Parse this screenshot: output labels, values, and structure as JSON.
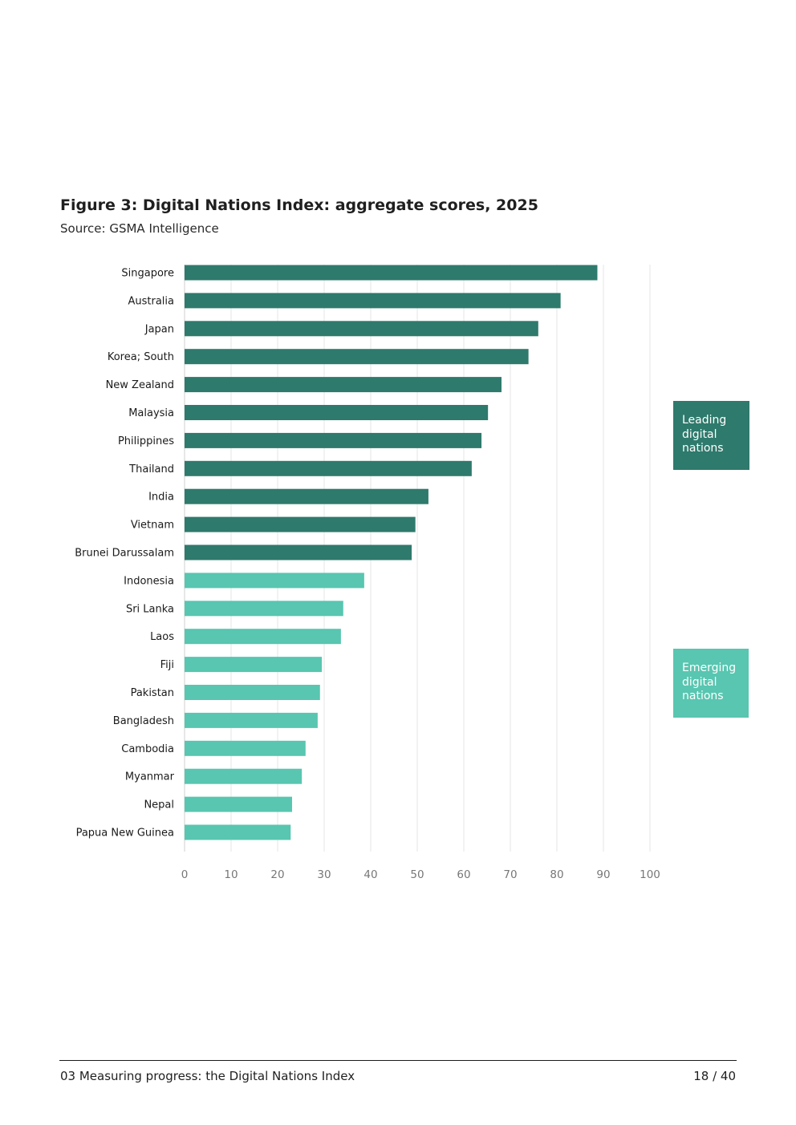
{
  "figure": {
    "title": "Figure 3: Digital Nations Index: aggregate scores, 2025",
    "source": "Source: GSMA Intelligence"
  },
  "chart_data": {
    "type": "bar",
    "orientation": "horizontal",
    "categories": [
      "Singapore",
      "Australia",
      "Japan",
      "Korea; South",
      "New Zealand",
      "Malaysia",
      "Philippines",
      "Thailand",
      "India",
      "Vietnam",
      "Brunei Darussalam",
      "Indonesia",
      "Sri Lanka",
      "Laos",
      "Fiji",
      "Pakistan",
      "Bangladesh",
      "Cambodia",
      "Myanmar",
      "Nepal",
      "Papua New Guinea"
    ],
    "values": [
      88.7,
      80.8,
      76.0,
      73.9,
      68.1,
      65.2,
      63.8,
      61.7,
      52.4,
      49.6,
      48.8,
      38.6,
      34.1,
      33.6,
      29.5,
      29.1,
      28.6,
      26.0,
      25.2,
      23.1,
      22.8
    ],
    "groups": [
      "Leading digital nations",
      "Leading digital nations",
      "Leading digital nations",
      "Leading digital nations",
      "Leading digital nations",
      "Leading digital nations",
      "Leading digital nations",
      "Leading digital nations",
      "Leading digital nations",
      "Leading digital nations",
      "Leading digital nations",
      "Emerging digital nations",
      "Emerging digital nations",
      "Emerging digital nations",
      "Emerging digital nations",
      "Emerging digital nations",
      "Emerging digital nations",
      "Emerging digital nations",
      "Emerging digital nations",
      "Emerging digital nations",
      "Emerging digital nations"
    ],
    "group_labels": [
      {
        "name": "Leading digital nations",
        "text": "Leading digital nations",
        "color": "#2e7a6c"
      },
      {
        "name": "Emerging digital nations",
        "text": "Emerging digital nations",
        "color": "#58c6b0"
      }
    ],
    "xlim": [
      0,
      100
    ],
    "xticks": [
      "0",
      "10",
      "20",
      "30",
      "40",
      "50",
      "60",
      "70",
      "80",
      "90",
      "100"
    ],
    "grid": true,
    "xlabel": "",
    "ylabel": ""
  },
  "footer": {
    "section": "03 Measuring progress: the Digital Nations Index",
    "page": "18 / 40"
  }
}
